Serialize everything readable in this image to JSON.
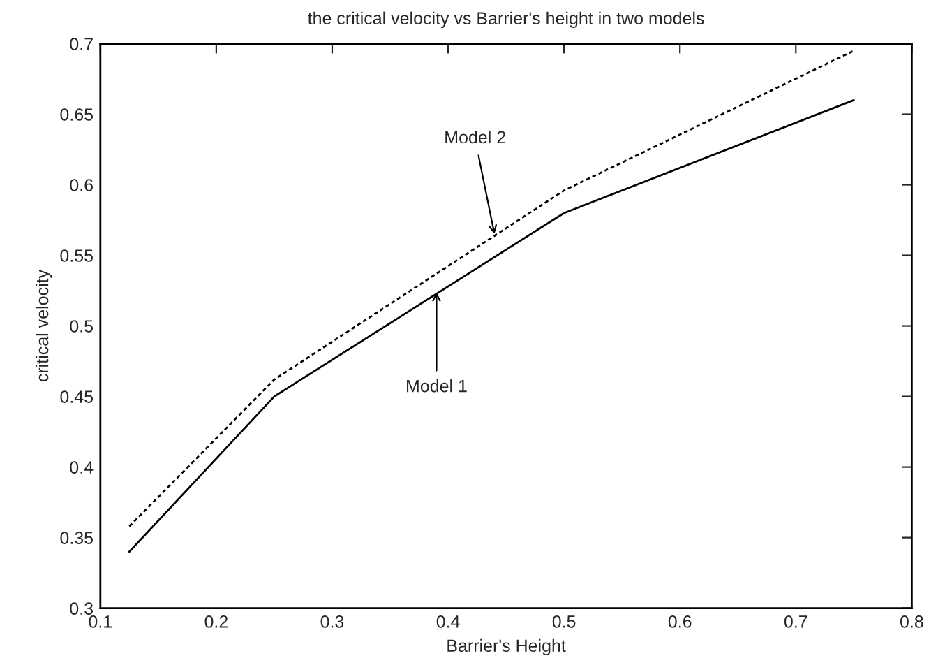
{
  "chart_data": {
    "type": "line",
    "title": "the critical velocity vs Barrier's height in two models",
    "xlabel": "Barrier's Height",
    "ylabel": "critical velocity",
    "x": [
      0.125,
      0.25,
      0.5,
      0.75
    ],
    "series": [
      {
        "color": "#000000",
        "line_style": "solid",
        "values": [
          0.34,
          0.45,
          0.58,
          0.66
        ]
      },
      {
        "color": "#000000",
        "line_style": "dotted",
        "values": [
          0.358,
          0.462,
          0.596,
          0.695
        ]
      }
    ],
    "annotations": [
      {
        "text": "Model 1",
        "x": 0.39,
        "y": 0.524
      },
      {
        "text": "Model 2",
        "x": 0.44,
        "y": 0.565
      }
    ],
    "xlim": [
      0.1,
      0.8
    ],
    "ylim": [
      0.3,
      0.7
    ],
    "xticks": [
      0.1,
      0.2,
      0.3,
      0.4,
      0.5,
      0.6,
      0.7,
      0.8
    ],
    "yticks": [
      0.3,
      0.35,
      0.4,
      0.45,
      0.5,
      0.55,
      0.6,
      0.65,
      0.7
    ],
    "grid": false,
    "legend": false,
    "marker": "none"
  }
}
